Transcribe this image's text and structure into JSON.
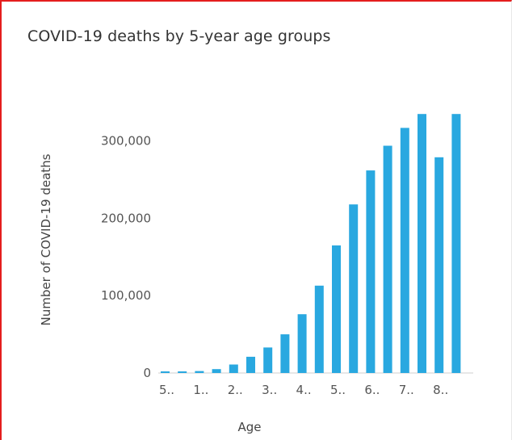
{
  "chart_data": {
    "type": "bar",
    "title": "COVID-19 deaths by 5-year age groups",
    "xlabel": "Age",
    "ylabel": "Number of COVID-19 deaths",
    "ylim": [
      0,
      330000
    ],
    "yticks": [
      {
        "value": 0,
        "label": "0"
      },
      {
        "value": 100000,
        "label": "100,000"
      },
      {
        "value": 200000,
        "label": "200,000"
      },
      {
        "value": 300000,
        "label": "300,000"
      }
    ],
    "tick_labels": [
      "5..",
      "1..",
      "2..",
      "3..",
      "4..",
      "5..",
      "6..",
      "7..",
      "8.."
    ],
    "values": [
      800,
      1000,
      2500,
      5000,
      11000,
      21000,
      33000,
      50000,
      76000,
      113000,
      165000,
      218000,
      262000,
      294000,
      317000,
      335000,
      279000,
      335000
    ],
    "color": "#29a8e0",
    "grid": false,
    "legend": "none"
  }
}
